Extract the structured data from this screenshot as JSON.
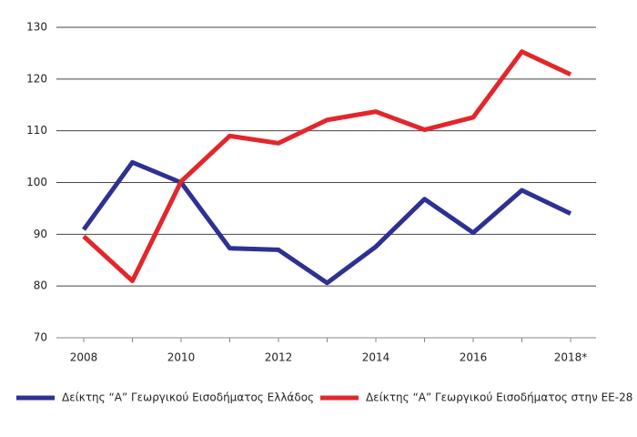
{
  "chart_data": {
    "type": "line",
    "categories": [
      "2008",
      null,
      "2010",
      null,
      "2012",
      null,
      "2014",
      null,
      "2016",
      null,
      "2018*"
    ],
    "series": [
      {
        "name": "Δείκτης “Α” Γεωργικού Εισοδήματος Ελλάδος",
        "color": "#2e3192",
        "values": [
          90.9,
          103.9,
          100,
          87.3,
          87,
          80.6,
          87.6,
          96.8,
          90.3,
          98.5,
          94
        ]
      },
      {
        "name": "Δείκτης “Α” Γεωργικού Εισοδήματος στην ΕΕ-28",
        "color": "#e3262b",
        "values": [
          89.6,
          81,
          100.2,
          109,
          107.6,
          112.1,
          113.7,
          110.2,
          112.6,
          125.3,
          120.9
        ]
      }
    ],
    "ylim": [
      70,
      130
    ],
    "yticks": [
      70,
      80,
      90,
      100,
      110,
      120,
      130
    ],
    "grid": true
  }
}
